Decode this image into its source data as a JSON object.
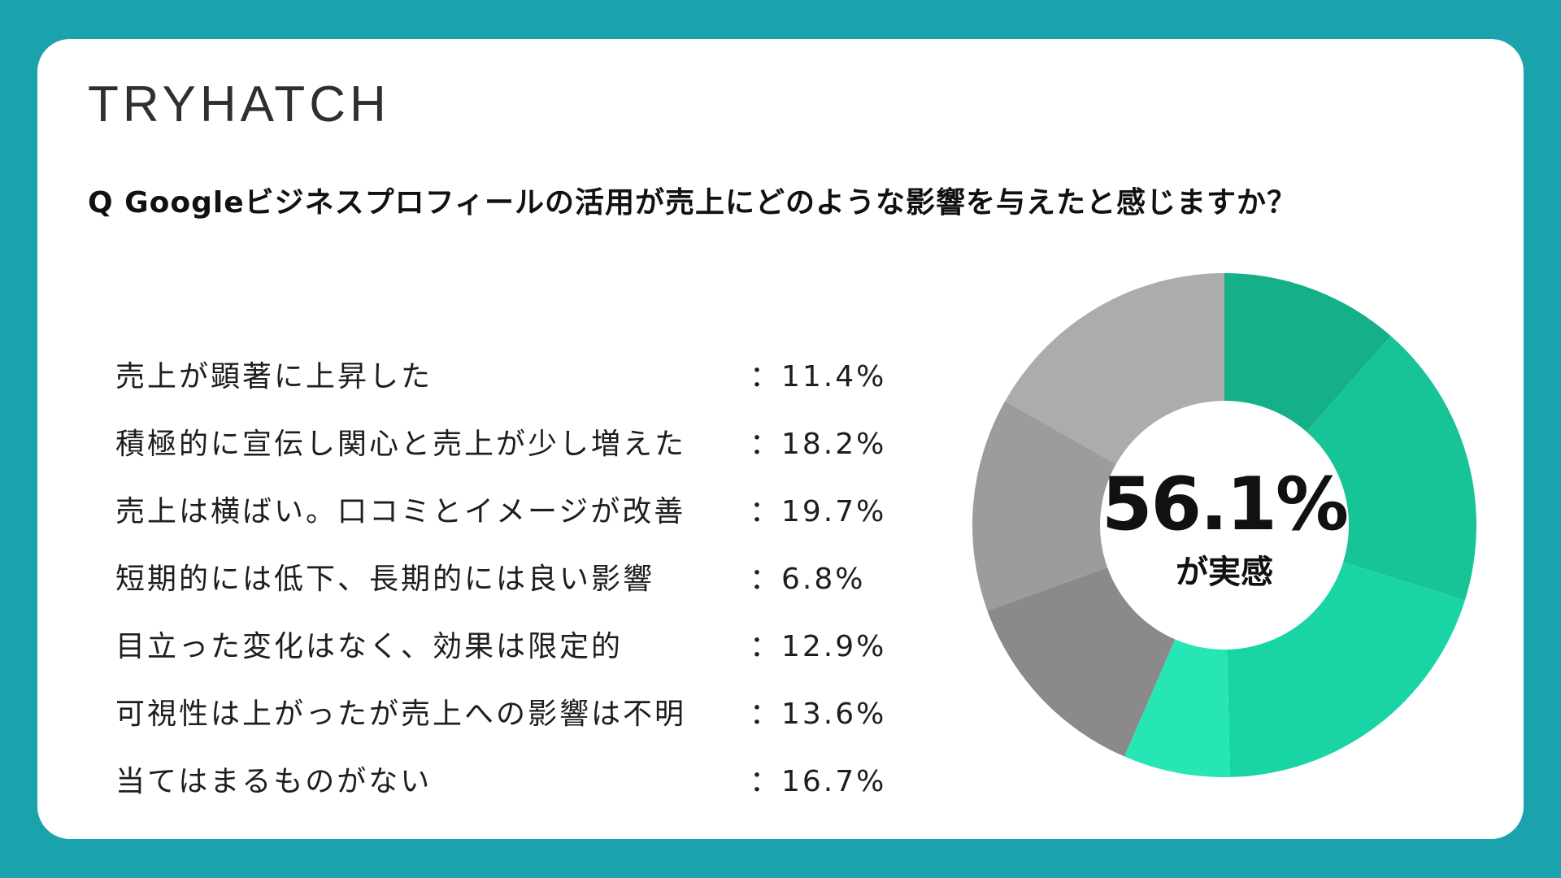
{
  "brand": {
    "logo_text": "TRYHATCH"
  },
  "question": "Q Googleビジネスプロフィールの活用が売上にどのような影響を与えたと感じますか？",
  "answers": [
    {
      "label": "売上が顕著に上昇した",
      "value": "：11.4%"
    },
    {
      "label": "積極的に宣伝し関心と売上が少し増えた",
      "value": "：18.2%"
    },
    {
      "label": "売上は横ばい。口コミとイメージが改善",
      "value": "：19.7%"
    },
    {
      "label": "短期的には低下、長期的には良い影響",
      "value": "：6.8%"
    },
    {
      "label": "目立った変化はなく、効果は限定的",
      "value": "：12.9%"
    },
    {
      "label": "可視性は上がったが売上への影響は不明",
      "value": "：13.6%"
    },
    {
      "label": "当てはまるものがない",
      "value": "：16.7%"
    }
  ],
  "donut_center": {
    "value": "56.1%",
    "caption": "が実感"
  },
  "colors": {
    "background": "#1ba3ad",
    "card": "#ffffff",
    "slices": [
      "#15b08a",
      "#17c497",
      "#19d5a5",
      "#27e6b6",
      "#8a8a8a",
      "#9c9c9c",
      "#acacac"
    ]
  },
  "chart_data": {
    "type": "pie",
    "donut": true,
    "categories": [
      "売上が顕著に上昇した",
      "積極的に宣伝し関心と売上が少し増えた",
      "売上は横ばい。口コミとイメージが改善",
      "短期的には低下、長期的には良い影響",
      "目立った変化はなく、効果は限定的",
      "可視性は上がったが売上への影響は不明",
      "当てはまるものがない"
    ],
    "values": [
      11.4,
      18.2,
      19.7,
      6.8,
      12.9,
      13.6,
      16.7
    ],
    "title": "Q Googleビジネスプロフィールの活用が売上にどのような影響を与えたと感じますか？",
    "legend": "left"
  }
}
